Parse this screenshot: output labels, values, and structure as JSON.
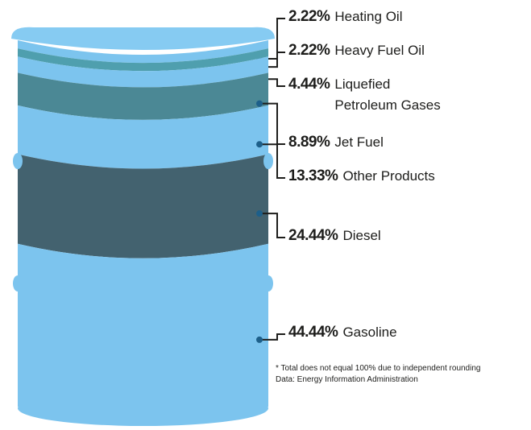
{
  "chart_data": {
    "type": "barrel",
    "categories": [
      "Heating Oil",
      "Heavy Fuel Oil",
      "Liquefied Petroleum Gases",
      "Jet Fuel",
      "Other Products",
      "Diesel",
      "Gasoline"
    ],
    "values": [
      2.22,
      2.22,
      4.44,
      8.89,
      13.33,
      24.44,
      44.44
    ],
    "value_labels": [
      "2.22%",
      "2.22%",
      "4.44%",
      "8.89%",
      "13.33%",
      "24.44%",
      "44.44%"
    ],
    "colors": [
      "#7cc4ee",
      "#4f9fae",
      "#7cc4ee",
      "#4b8895",
      "#7cc4ee",
      "#43626f",
      "#7cc4ee"
    ],
    "footnote": "* Total does not equal 100% due to independent rounding",
    "source": "Data: Energy Information Administration"
  }
}
